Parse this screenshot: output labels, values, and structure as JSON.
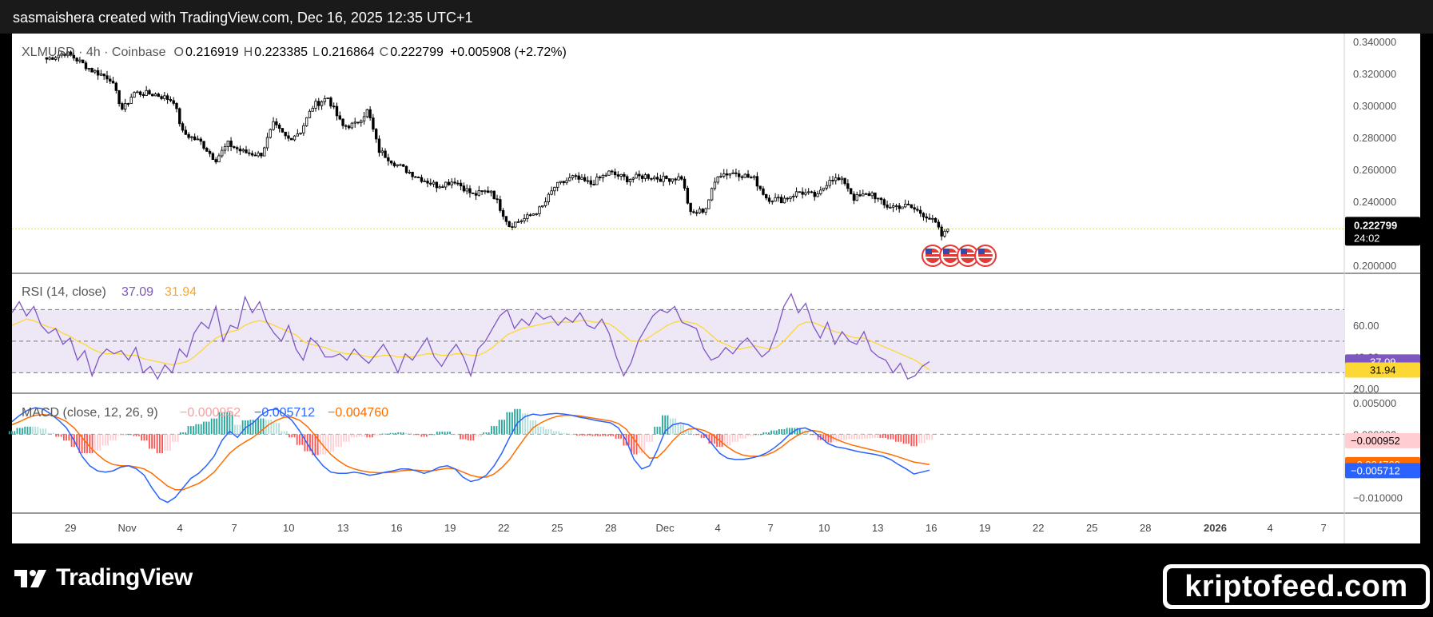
{
  "header": {
    "credit": "sasmaishera created with TradingView.com, Dec 16, 2025 12:35 UTC+1"
  },
  "footer": {
    "logo_text": "TradingView",
    "watermark": "kriptofeed.com"
  },
  "colors": {
    "candle": "#000000",
    "rsi_line": "#7e57c2",
    "rsi_ma": "#fdd835",
    "rsi_band": "#ede7f6",
    "macd_line": "#2962ff",
    "signal_line": "#ff6d00",
    "hist_up_strong": "#26a69a",
    "hist_up_weak": "#b2dfdb",
    "hist_down_strong": "#ff5252",
    "hist_down_weak": "#ffcdd2"
  },
  "chart_data": [
    {
      "type": "candlestick",
      "symbol": "XLMUSD",
      "timeframe": "4h",
      "exchange": "Coinbase",
      "legend": {
        "title": "XLMUSD · 4h · Coinbase",
        "o_label": "O",
        "o": "0.216919",
        "h_label": "H",
        "h": "0.223385",
        "l_label": "L",
        "l": "0.216864",
        "c_label": "C",
        "c": "0.222799",
        "change": "+0.005908 (+2.72%)"
      },
      "ylim": [
        0.195,
        0.345
      ],
      "y_ticks": [
        "0.340000",
        "0.320000",
        "0.300000",
        "0.280000",
        "0.260000",
        "0.240000",
        "0.200000"
      ],
      "last_price": "0.222799",
      "countdown": "24:02",
      "x_ticks": [
        "29",
        "Nov",
        "4",
        "7",
        "10",
        "13",
        "16",
        "19",
        "22",
        "25",
        "28",
        "Dec",
        "4",
        "7",
        "10",
        "13",
        "16",
        "19",
        "22",
        "25",
        "28",
        "2026",
        "4",
        "7"
      ],
      "close_path": [
        {
          "day": 27.0,
          "close": 0.329
        },
        {
          "day": 28.0,
          "close": 0.333
        },
        {
          "day": 28.5,
          "close": 0.33
        },
        {
          "day": 29.5,
          "close": 0.322
        },
        {
          "day": 30.5,
          "close": 0.317
        },
        {
          "day": 31.2,
          "close": 0.297
        },
        {
          "day": 31.8,
          "close": 0.308
        },
        {
          "day": 33.0,
          "close": 0.307
        },
        {
          "day": 34.0,
          "close": 0.303
        },
        {
          "day": 34.5,
          "close": 0.283
        },
        {
          "day": 35.5,
          "close": 0.277
        },
        {
          "day": 36.3,
          "close": 0.266
        },
        {
          "day": 37.0,
          "close": 0.276
        },
        {
          "day": 37.8,
          "close": 0.271
        },
        {
          "day": 38.8,
          "close": 0.269
        },
        {
          "day": 39.5,
          "close": 0.288
        },
        {
          "day": 40.3,
          "close": 0.279
        },
        {
          "day": 41.0,
          "close": 0.284
        },
        {
          "day": 41.7,
          "close": 0.3
        },
        {
          "day": 42.5,
          "close": 0.305
        },
        {
          "day": 43.3,
          "close": 0.287
        },
        {
          "day": 44.0,
          "close": 0.288
        },
        {
          "day": 44.7,
          "close": 0.297
        },
        {
          "day": 45.3,
          "close": 0.272
        },
        {
          "day": 46.3,
          "close": 0.263
        },
        {
          "day": 47.5,
          "close": 0.255
        },
        {
          "day": 48.5,
          "close": 0.25
        },
        {
          "day": 49.5,
          "close": 0.253
        },
        {
          "day": 50.5,
          "close": 0.244
        },
        {
          "day": 51.5,
          "close": 0.247
        },
        {
          "day": 52.5,
          "close": 0.225
        },
        {
          "day": 53.5,
          "close": 0.23
        },
        {
          "day": 54.3,
          "close": 0.236
        },
        {
          "day": 55.0,
          "close": 0.249
        },
        {
          "day": 56.0,
          "close": 0.255
        },
        {
          "day": 57.0,
          "close": 0.251
        },
        {
          "day": 58.0,
          "close": 0.258
        },
        {
          "day": 59.0,
          "close": 0.254
        },
        {
          "day": 60.0,
          "close": 0.256
        },
        {
          "day": 61.0,
          "close": 0.254
        },
        {
          "day": 62.0,
          "close": 0.255
        },
        {
          "day": 62.5,
          "close": 0.232
        },
        {
          "day": 63.3,
          "close": 0.235
        },
        {
          "day": 64.0,
          "close": 0.257
        },
        {
          "day": 65.0,
          "close": 0.258
        },
        {
          "day": 66.0,
          "close": 0.254
        },
        {
          "day": 66.7,
          "close": 0.242
        },
        {
          "day": 67.5,
          "close": 0.241
        },
        {
          "day": 68.5,
          "close": 0.246
        },
        {
          "day": 69.5,
          "close": 0.243
        },
        {
          "day": 70.2,
          "close": 0.255
        },
        {
          "day": 71.0,
          "close": 0.252
        },
        {
          "day": 71.5,
          "close": 0.242
        },
        {
          "day": 72.5,
          "close": 0.245
        },
        {
          "day": 73.2,
          "close": 0.237
        },
        {
          "day": 74.5,
          "close": 0.237
        },
        {
          "day": 75.5,
          "close": 0.231
        },
        {
          "day": 76.0,
          "close": 0.226
        },
        {
          "day": 76.4,
          "close": 0.217
        },
        {
          "day": 76.6,
          "close": 0.2228
        }
      ],
      "events_count": 4
    },
    {
      "type": "line",
      "name": "RSI",
      "legend": {
        "title": "RSI (14, close)",
        "value": "37.09",
        "ma_value": "31.94"
      },
      "ylim": [
        17,
        93
      ],
      "bands": [
        70,
        50,
        30
      ],
      "y_ticks": [
        "60.00",
        "40.00",
        "20.00"
      ],
      "last_rsi": "37.09",
      "last_ma": "31.94",
      "rsi": [
        68,
        75,
        66,
        72,
        60,
        55,
        58,
        48,
        52,
        38,
        44,
        28,
        40,
        45,
        42,
        44,
        38,
        46,
        30,
        34,
        26,
        35,
        30,
        45,
        40,
        55,
        62,
        58,
        72,
        50,
        60,
        58,
        78,
        68,
        75,
        62,
        55,
        50,
        60,
        45,
        38,
        52,
        48,
        40,
        40,
        42,
        38,
        45,
        40,
        36,
        42,
        48,
        40,
        30,
        42,
        38,
        45,
        52,
        40,
        34,
        42,
        48,
        40,
        28,
        45,
        50,
        58,
        66,
        70,
        58,
        64,
        60,
        68,
        64,
        66,
        60,
        65,
        62,
        68,
        60,
        58,
        64,
        55,
        40,
        28,
        36,
        50,
        58,
        66,
        70,
        68,
        72,
        62,
        60,
        58,
        45,
        38,
        40,
        46,
        42,
        48,
        52,
        46,
        40,
        44,
        56,
        72,
        80,
        68,
        74,
        60,
        52,
        62,
        48,
        56,
        50,
        48,
        56,
        44,
        40,
        38,
        30,
        36,
        26,
        28,
        34,
        37
      ],
      "rsi_ma": [
        60,
        62,
        64,
        63,
        61,
        59,
        58,
        55,
        53,
        50,
        48,
        45,
        43,
        42,
        42,
        42,
        41,
        41,
        39,
        38,
        37,
        36,
        35,
        36,
        37,
        40,
        44,
        48,
        52,
        54,
        56,
        57,
        60,
        62,
        63,
        62,
        60,
        58,
        56,
        54,
        50,
        48,
        47,
        46,
        44,
        43,
        42,
        42,
        41,
        40,
        40,
        41,
        41,
        40,
        40,
        40,
        41,
        42,
        42,
        41,
        41,
        42,
        42,
        41,
        41,
        43,
        46,
        50,
        54,
        56,
        58,
        59,
        60,
        61,
        62,
        62,
        62,
        62,
        63,
        63,
        62,
        62,
        61,
        58,
        54,
        50,
        50,
        51,
        54,
        57,
        60,
        62,
        63,
        62,
        61,
        58,
        54,
        50,
        48,
        46,
        45,
        46,
        47,
        46,
        45,
        46,
        50,
        55,
        60,
        62,
        62,
        60,
        58,
        56,
        55,
        53,
        52,
        52,
        50,
        48,
        46,
        44,
        42,
        40,
        38,
        35,
        32
      ]
    },
    {
      "type": "line",
      "name": "MACD",
      "legend": {
        "title": "MACD (close, 12, 26, 9)",
        "histogram": "−0.000952",
        "macd": "−0.005712",
        "signal": "−0.004760"
      },
      "ylim": [
        -0.0125,
        0.0065
      ],
      "y_ticks": [
        "0.005000",
        "0.000000",
        "−0.010000"
      ],
      "last_hist": "−0.000952",
      "last_macd": "−0.005712",
      "last_signal": "−0.004760",
      "macd": [
        0.002,
        0.003,
        0.0038,
        0.0042,
        0.004,
        0.0032,
        0.0022,
        0.001,
        -0.001,
        -0.0035,
        -0.005,
        -0.0058,
        -0.006,
        -0.0058,
        -0.0052,
        -0.005,
        -0.0055,
        -0.0065,
        -0.0085,
        -0.0102,
        -0.0108,
        -0.01,
        -0.0085,
        -0.007,
        -0.0062,
        -0.005,
        -0.0035,
        -0.001,
        0.0005,
        -0.0005,
        0.001,
        0.0018,
        0.003,
        0.0038,
        0.004,
        0.0032,
        0.0022,
        0.0005,
        -0.0015,
        -0.0035,
        -0.005,
        -0.006,
        -0.0062,
        -0.0062,
        -0.006,
        -0.0062,
        -0.0065,
        -0.0063,
        -0.006,
        -0.0058,
        -0.0055,
        -0.0055,
        -0.0058,
        -0.0062,
        -0.0058,
        -0.0052,
        -0.005,
        -0.0055,
        -0.0068,
        -0.0075,
        -0.0072,
        -0.0065,
        -0.005,
        -0.003,
        -0.0005,
        0.0018,
        0.0028,
        0.0032,
        0.003,
        0.0032,
        0.0033,
        0.0032,
        0.003,
        0.0027,
        0.0025,
        0.0022,
        0.002,
        0.0018,
        0.001,
        -0.001,
        -0.004,
        -0.0055,
        -0.005,
        -0.0025,
        0.0005,
        0.0015,
        0.0018,
        0.0015,
        0.0008,
        0.0,
        -0.0015,
        -0.003,
        -0.0038,
        -0.004,
        -0.004,
        -0.0038,
        -0.0035,
        -0.003,
        -0.0022,
        -0.0012,
        0.0,
        0.0008,
        0.001,
        0.0005,
        -0.0005,
        -0.0015,
        -0.002,
        -0.0022,
        -0.0025,
        -0.0028,
        -0.003,
        -0.0032,
        -0.0035,
        -0.004,
        -0.0048,
        -0.0055,
        -0.0063,
        -0.006,
        -0.0057
      ],
      "signal": [
        0.0015,
        0.002,
        0.0026,
        0.003,
        0.0031,
        0.003,
        0.0026,
        0.002,
        0.001,
        -0.0005,
        -0.002,
        -0.0032,
        -0.0042,
        -0.0048,
        -0.005,
        -0.005,
        -0.0052,
        -0.0055,
        -0.0062,
        -0.0072,
        -0.0082,
        -0.0088,
        -0.0088,
        -0.0083,
        -0.0078,
        -0.007,
        -0.006,
        -0.0045,
        -0.003,
        -0.002,
        -0.0012,
        -0.0005,
        0.0005,
        0.0015,
        0.0022,
        0.0027,
        0.0027,
        0.0022,
        0.0012,
        -0.0002,
        -0.0018,
        -0.0032,
        -0.0042,
        -0.005,
        -0.0055,
        -0.0058,
        -0.006,
        -0.0061,
        -0.0061,
        -0.006,
        -0.0058,
        -0.0057,
        -0.0057,
        -0.0058,
        -0.0058,
        -0.0056,
        -0.0054,
        -0.0055,
        -0.006,
        -0.0065,
        -0.0068,
        -0.0068,
        -0.0063,
        -0.0053,
        -0.004,
        -0.0022,
        -0.0005,
        0.001,
        0.0018,
        0.0024,
        0.0028,
        0.003,
        0.003,
        0.0029,
        0.0027,
        0.0025,
        0.0023,
        0.0021,
        0.0017,
        0.0008,
        -0.0008,
        -0.0025,
        -0.0038,
        -0.0037,
        -0.0025,
        -0.001,
        0.0002,
        0.0008,
        0.0009,
        0.0006,
        0.0,
        -0.001,
        -0.002,
        -0.0028,
        -0.0033,
        -0.0035,
        -0.0035,
        -0.0033,
        -0.0028,
        -0.002,
        -0.001,
        -0.0002,
        0.0004,
        0.0006,
        0.0004,
        -0.0002,
        -0.0008,
        -0.0013,
        -0.0017,
        -0.002,
        -0.0023,
        -0.0026,
        -0.0029,
        -0.0032,
        -0.0036,
        -0.004,
        -0.0044,
        -0.0046,
        -0.0048
      ]
    }
  ]
}
